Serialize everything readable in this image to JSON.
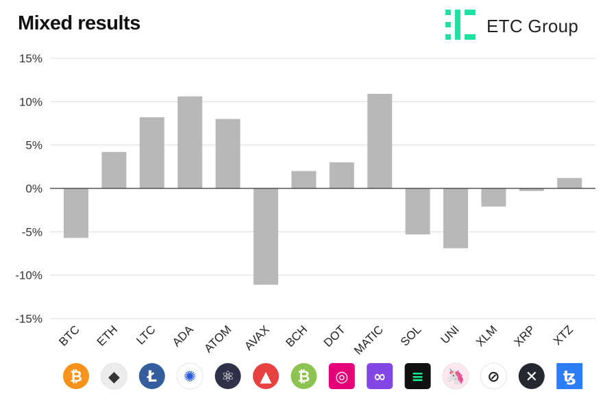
{
  "header": {
    "title": "Mixed results",
    "brand": "ETC Group",
    "brand_color": "#1ee0a0"
  },
  "chart_data": {
    "type": "bar",
    "title": "Mixed results",
    "xlabel": "",
    "ylabel": "",
    "ylim": [
      -15,
      15
    ],
    "yticks": [
      15,
      10,
      5,
      0,
      -5,
      -10,
      -15
    ],
    "ytick_labels": [
      "15%",
      "10%",
      "5%",
      "0%",
      "-5%",
      "-10%",
      "-15%"
    ],
    "grid": true,
    "bar_color": "#b8b8b8",
    "categories": [
      "BTC",
      "ETH",
      "LTC",
      "ADA",
      "ATOM",
      "AVAX",
      "BCH",
      "DOT",
      "MATIC",
      "SOL",
      "UNI",
      "XLM",
      "XRP",
      "XTZ"
    ],
    "values": [
      -5.7,
      4.2,
      8.2,
      10.6,
      8.0,
      -11.1,
      2.0,
      3.0,
      10.9,
      -5.3,
      -6.9,
      -2.1,
      -0.3,
      1.2
    ]
  },
  "icons": [
    {
      "name": "bitcoin-icon",
      "color": "#f7931a",
      "shape": "circle",
      "glyph": "₿",
      "fg": "#ffffff"
    },
    {
      "name": "ethereum-icon",
      "color": "#ececec",
      "shape": "circle",
      "glyph": "◆",
      "fg": "#343434"
    },
    {
      "name": "litecoin-icon",
      "color": "#345d9d",
      "shape": "circle",
      "glyph": "Ł",
      "fg": "#ffffff"
    },
    {
      "name": "cardano-icon",
      "color": "#ffffff",
      "shape": "circle",
      "glyph": "✺",
      "fg": "#2a5ada"
    },
    {
      "name": "cosmos-icon",
      "color": "#2e3148",
      "shape": "circle",
      "glyph": "⚛",
      "fg": "#ffffff"
    },
    {
      "name": "avalanche-icon",
      "color": "#e84142",
      "shape": "circle",
      "glyph": "▲",
      "fg": "#ffffff"
    },
    {
      "name": "bitcoin-cash-icon",
      "color": "#8dc351",
      "shape": "circle",
      "glyph": "₿",
      "fg": "#ffffff"
    },
    {
      "name": "polkadot-icon",
      "color": "#e6007a",
      "shape": "rounded",
      "glyph": "◎",
      "fg": "#ffffff"
    },
    {
      "name": "polygon-icon",
      "color": "#8247e5",
      "shape": "rounded",
      "glyph": "∞",
      "fg": "#ffffff"
    },
    {
      "name": "solana-icon",
      "color": "#111111",
      "shape": "rounded",
      "glyph": "≡",
      "fg": "#14f195"
    },
    {
      "name": "uniswap-icon",
      "color": "#fde8f1",
      "shape": "circle",
      "glyph": "🦄",
      "fg": "#ff007a"
    },
    {
      "name": "stellar-icon",
      "color": "#ffffff",
      "shape": "circle",
      "glyph": "⊘",
      "fg": "#222222"
    },
    {
      "name": "xrp-icon",
      "color": "#23292f",
      "shape": "circle",
      "glyph": "✕",
      "fg": "#ffffff"
    },
    {
      "name": "tezos-icon",
      "color": "#2c7df7",
      "shape": "square",
      "glyph": "ꜩ",
      "fg": "#ffffff"
    }
  ]
}
